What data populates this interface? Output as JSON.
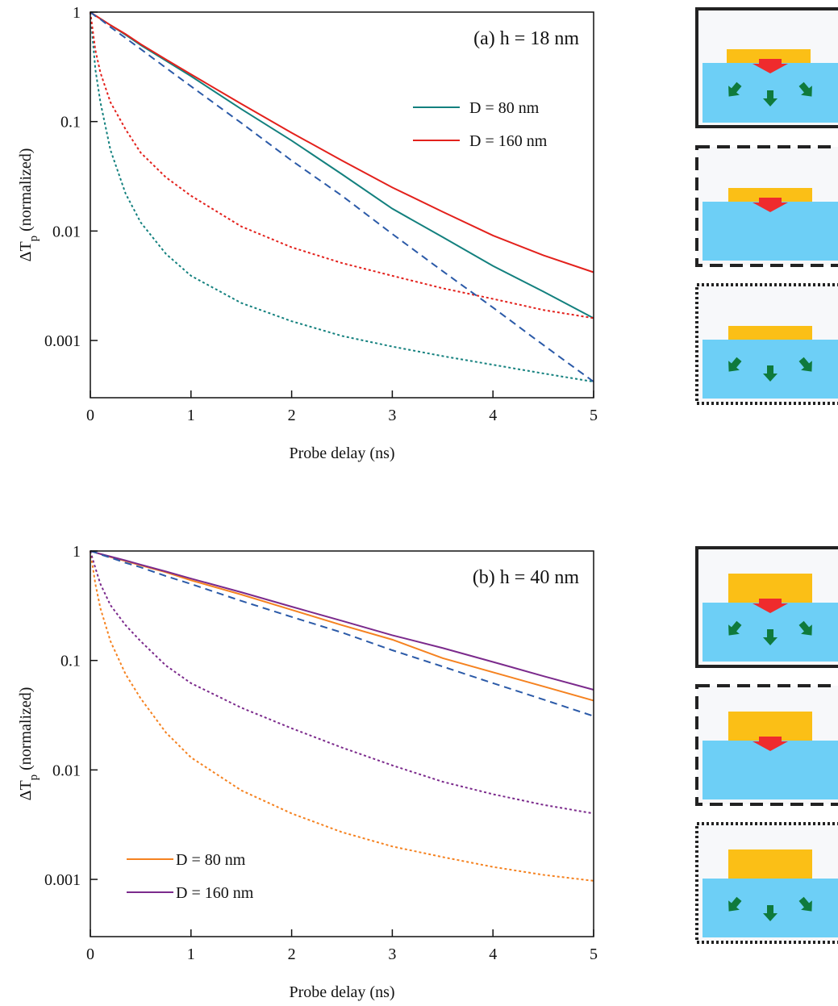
{
  "chart_data": [
    {
      "type": "line",
      "annotation": "(a) h = 18 nm",
      "xlabel": "Probe delay (ns)",
      "ylabel": [
        "ΔT",
        "p",
        " (normalized)"
      ],
      "yscale": "log",
      "legend": "upper right",
      "xlim": [
        0,
        5
      ],
      "xticks": [
        0,
        1,
        2,
        3,
        4,
        5
      ],
      "ylim": [
        0.0003,
        1
      ],
      "yticks": [
        1,
        0.1,
        0.01,
        0.001
      ],
      "x": [
        0,
        0.05,
        0.1,
        0.2,
        0.35,
        0.5,
        0.75,
        1,
        1.5,
        2,
        2.5,
        3,
        3.5,
        4,
        4.5,
        5
      ],
      "series": [
        {
          "name": "D = 80 nm",
          "color": "#13807e",
          "dash": "solid",
          "values": [
            1,
            0.93,
            0.87,
            0.76,
            0.62,
            0.5,
            0.36,
            0.26,
            0.13,
            0.067,
            0.033,
            0.016,
            0.0088,
            0.0048,
            0.0028,
            0.0016
          ]
        },
        {
          "name": "D = 160 nm",
          "color": "#e3211c",
          "dash": "solid",
          "values": [
            1,
            0.93,
            0.87,
            0.76,
            0.63,
            0.51,
            0.37,
            0.27,
            0.145,
            0.079,
            0.044,
            0.025,
            0.015,
            0.0091,
            0.006,
            0.0042
          ]
        },
        {
          "color": "#13807e",
          "dash": "dotted",
          "values": [
            1,
            0.3,
            0.15,
            0.055,
            0.022,
            0.012,
            0.0062,
            0.0039,
            0.0022,
            0.0015,
            0.0011,
            0.00088,
            0.00072,
            0.0006,
            0.0005,
            0.00042
          ]
        },
        {
          "color": "#e3211c",
          "dash": "dotted",
          "values": [
            1,
            0.45,
            0.28,
            0.15,
            0.085,
            0.052,
            0.031,
            0.021,
            0.011,
            0.0071,
            0.0051,
            0.0039,
            0.003,
            0.0024,
            0.0019,
            0.0016
          ]
        },
        {
          "color": "#2b5aa8",
          "dash": "dashed",
          "values": [
            1,
            0.92,
            0.86,
            0.73,
            0.58,
            0.46,
            0.31,
            0.21,
            0.097,
            0.044,
            0.021,
            0.0094,
            0.0043,
            0.002,
            0.00091,
            0.00042
          ]
        }
      ]
    },
    {
      "type": "line",
      "annotation": "(b) h = 40 nm",
      "xlabel": "Probe delay (ns)",
      "ylabel": [
        "ΔT",
        "p",
        " (normalized)"
      ],
      "yscale": "log",
      "legend": "lower left",
      "xlim": [
        0,
        5
      ],
      "xticks": [
        0,
        1,
        2,
        3,
        4,
        5
      ],
      "ylim": [
        0.0003,
        1
      ],
      "yticks": [
        1,
        0.1,
        0.01,
        0.001
      ],
      "x": [
        0,
        0.05,
        0.1,
        0.2,
        0.35,
        0.5,
        0.75,
        1,
        1.5,
        2,
        2.5,
        3,
        3.5,
        4,
        4.5,
        5
      ],
      "series": [
        {
          "name": "D = 80 nm",
          "color": "#f58220",
          "dash": "solid",
          "values": [
            1,
            0.97,
            0.94,
            0.88,
            0.81,
            0.74,
            0.64,
            0.54,
            0.4,
            0.29,
            0.21,
            0.155,
            0.105,
            0.078,
            0.058,
            0.043
          ]
        },
        {
          "name": "D = 160 nm",
          "color": "#7b2a8c",
          "dash": "solid",
          "values": [
            1,
            0.97,
            0.94,
            0.89,
            0.82,
            0.75,
            0.65,
            0.56,
            0.42,
            0.31,
            0.23,
            0.17,
            0.13,
            0.097,
            0.072,
            0.054
          ]
        },
        {
          "color": "#f58220",
          "dash": "dotted",
          "values": [
            1,
            0.5,
            0.3,
            0.15,
            0.075,
            0.045,
            0.022,
            0.013,
            0.0065,
            0.004,
            0.0027,
            0.002,
            0.0016,
            0.0013,
            0.0011,
            0.00097
          ]
        },
        {
          "color": "#7b2a8c",
          "dash": "dotted",
          "values": [
            1,
            0.7,
            0.5,
            0.32,
            0.21,
            0.15,
            0.09,
            0.062,
            0.037,
            0.024,
            0.016,
            0.011,
            0.0078,
            0.006,
            0.0048,
            0.004
          ]
        },
        {
          "color": "#2b5aa8",
          "dash": "dashed",
          "values": [
            1,
            0.97,
            0.93,
            0.87,
            0.78,
            0.71,
            0.59,
            0.5,
            0.35,
            0.25,
            0.18,
            0.124,
            0.088,
            0.062,
            0.044,
            0.031
          ]
        }
      ]
    }
  ]
}
